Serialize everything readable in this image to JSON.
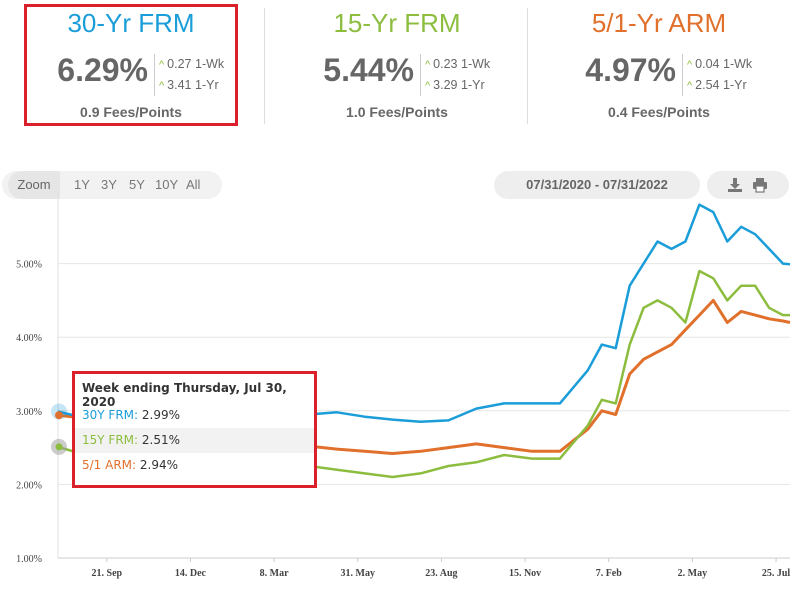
{
  "cards": [
    {
      "title": "30-Yr FRM",
      "rate": "6.29%",
      "wk": "0.27",
      "wk_label": "1-Wk",
      "yr": "3.41",
      "yr_label": "1-Yr",
      "fees": "0.9 Fees/Points",
      "color": "#1a9dd9"
    },
    {
      "title": "15-Yr FRM",
      "rate": "5.44%",
      "wk": "0.23",
      "wk_label": "1-Wk",
      "yr": "3.29",
      "yr_label": "1-Yr",
      "fees": "1.0 Fees/Points",
      "color": "#8cbd3f"
    },
    {
      "title": "5/1-Yr ARM",
      "rate": "4.97%",
      "wk": "0.04",
      "wk_label": "1-Wk",
      "yr": "2.54",
      "yr_label": "1-Yr",
      "fees": "0.4 Fees/Points",
      "color": "#e0702b"
    }
  ],
  "toolbar": {
    "zoom_label": "Zoom",
    "zoom_options": [
      "1Y",
      "3Y",
      "5Y",
      "10Y",
      "All"
    ],
    "date_range": "07/31/2020 - 07/31/2022",
    "download_icon": "download-icon",
    "print_icon": "print-icon"
  },
  "tooltip": {
    "title": "Week ending Thursday, Jul 30, 2020",
    "rows": [
      {
        "label": "30Y FRM:",
        "value": "2.99%",
        "color": "#1a9dd9"
      },
      {
        "label": "15Y FRM:",
        "value": "2.51%",
        "color": "#8cbd3f"
      },
      {
        "label": "5/1 ARM:",
        "value": "2.94%",
        "color": "#e0702b"
      }
    ]
  },
  "chart_data": {
    "type": "line",
    "ylim": [
      1,
      6
    ],
    "y_ticks": [
      "1.00%",
      "2.00%",
      "3.00%",
      "4.00%",
      "5.00%"
    ],
    "y_tick_values": [
      1,
      2,
      3,
      4,
      5
    ],
    "x_ticks": [
      "21. Sep",
      "14. Dec",
      "8. Mar",
      "31. May",
      "23. Aug",
      "15. Nov",
      "7. Feb",
      "2. May",
      "25. Jul"
    ],
    "x_tick_values": [
      7,
      19,
      31,
      43,
      55,
      67,
      79,
      91,
      103
    ],
    "grid": true,
    "series": [
      {
        "name": "30Y FRM",
        "color": "#1a9dd9",
        "x": [
          0,
          4,
          8,
          12,
          16,
          20,
          24,
          28,
          32,
          36,
          40,
          44,
          48,
          52,
          56,
          60,
          64,
          68,
          72,
          76,
          78,
          80,
          82,
          84,
          86,
          88,
          90,
          92,
          94,
          96,
          98,
          100,
          102,
          104,
          105
        ],
        "values": [
          2.99,
          2.9,
          2.88,
          2.86,
          2.76,
          2.73,
          2.9,
          3.05,
          2.96,
          2.95,
          2.98,
          2.92,
          2.88,
          2.85,
          2.87,
          3.03,
          3.1,
          3.1,
          3.1,
          3.55,
          3.9,
          3.85,
          4.7,
          5.0,
          5.3,
          5.2,
          5.3,
          5.8,
          5.7,
          5.3,
          5.5,
          5.4,
          5.2,
          5.0,
          4.99
        ]
      },
      {
        "name": "15Y FRM",
        "color": "#8cbd3f",
        "x": [
          0,
          4,
          8,
          12,
          16,
          20,
          24,
          28,
          32,
          36,
          40,
          44,
          48,
          52,
          56,
          60,
          64,
          68,
          72,
          76,
          78,
          80,
          82,
          84,
          86,
          88,
          90,
          92,
          94,
          96,
          98,
          100,
          102,
          104,
          105
        ],
        "values": [
          2.51,
          2.4,
          2.35,
          2.32,
          2.3,
          2.25,
          2.25,
          2.27,
          2.25,
          2.25,
          2.2,
          2.15,
          2.1,
          2.15,
          2.25,
          2.3,
          2.4,
          2.35,
          2.35,
          2.8,
          3.15,
          3.1,
          3.9,
          4.4,
          4.5,
          4.4,
          4.2,
          4.9,
          4.8,
          4.5,
          4.7,
          4.7,
          4.4,
          4.3,
          4.3
        ]
      },
      {
        "name": "5/1 ARM",
        "color": "#e0702b",
        "x": [
          0,
          4,
          8,
          12,
          16,
          20,
          24,
          28,
          32,
          36,
          40,
          44,
          48,
          52,
          56,
          60,
          64,
          68,
          72,
          76,
          78,
          80,
          82,
          84,
          86,
          88,
          90,
          92,
          94,
          96,
          98,
          100,
          102,
          104,
          105
        ],
        "values": [
          2.94,
          2.9,
          2.85,
          2.8,
          2.75,
          2.7,
          2.65,
          2.6,
          2.55,
          2.52,
          2.48,
          2.45,
          2.42,
          2.45,
          2.5,
          2.55,
          2.5,
          2.45,
          2.45,
          2.75,
          3.0,
          2.95,
          3.5,
          3.7,
          3.8,
          3.9,
          4.1,
          4.3,
          4.5,
          4.2,
          4.35,
          4.3,
          4.25,
          4.22,
          4.2
        ]
      }
    ]
  }
}
